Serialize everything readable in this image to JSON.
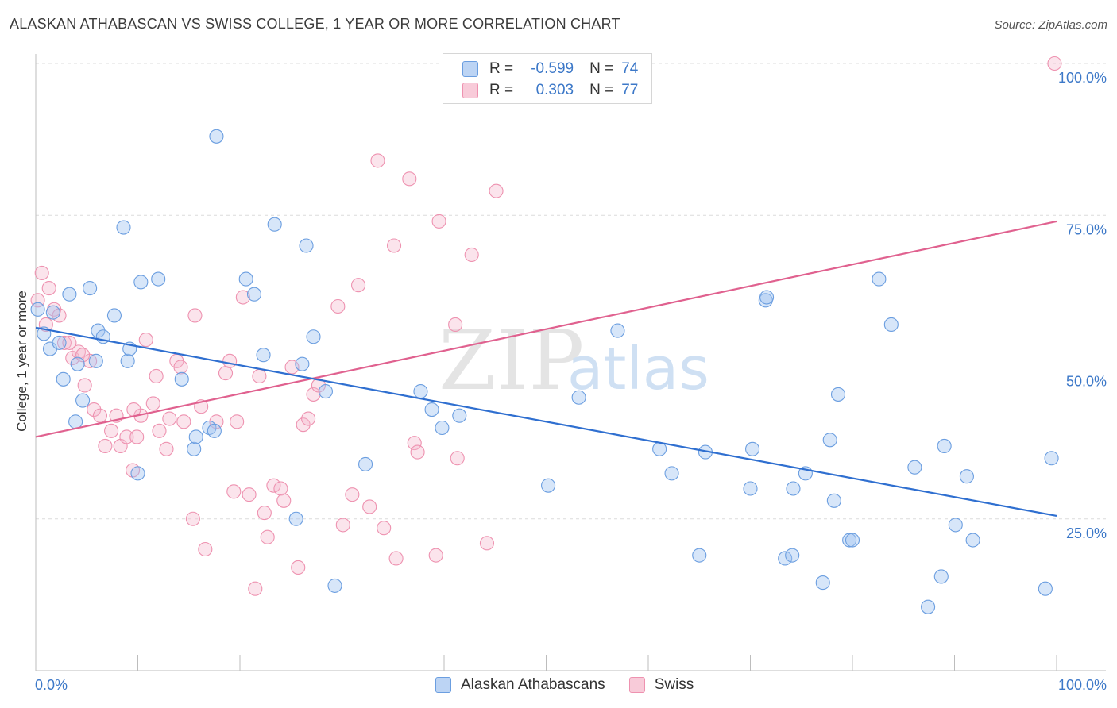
{
  "header": {
    "title": "ALASKAN ATHABASCAN VS SWISS COLLEGE, 1 YEAR OR MORE CORRELATION CHART",
    "source": "Source: ZipAtlas.com"
  },
  "legend_top": {
    "rows": [
      {
        "r_label": "R =",
        "r_value": "-0.599",
        "n_label": "N =",
        "n_value": "74"
      },
      {
        "r_label": "R =",
        "r_value": "0.303",
        "n_label": "N =",
        "n_value": "77"
      }
    ]
  },
  "watermark": {
    "zip": "ZIP",
    "atlas": "atlas"
  },
  "chart_data": {
    "type": "scatter",
    "title": "ALASKAN ATHABASCAN VS SWISS COLLEGE, 1 YEAR OR MORE CORRELATION CHART",
    "xlabel": "",
    "ylabel": "College, 1 year or more",
    "xlim": [
      0,
      100
    ],
    "ylim": [
      0,
      100
    ],
    "x_tick_labels": [
      "0.0%",
      "100.0%"
    ],
    "y_ticks": [
      25,
      50,
      75,
      100
    ],
    "y_tick_labels": [
      "25.0%",
      "50.0%",
      "75.0%",
      "100.0%"
    ],
    "grid": true,
    "legend_position": "bottom-center",
    "colors": {
      "Alaskan Athabascans": "#5b8fd8",
      "Swiss": "#ee8fae",
      "blue_line": "#2f6fd0",
      "pink_line": "#e0618f"
    },
    "series": [
      {
        "name": "Alaskan Athabascans",
        "r": -0.599,
        "n": 74,
        "trend": {
          "x": [
            0,
            100
          ],
          "y": [
            56.5,
            25.5
          ]
        },
        "points": [
          [
            0.2,
            59.5
          ],
          [
            0.8,
            55.5
          ],
          [
            1.4,
            53
          ],
          [
            1.7,
            59
          ],
          [
            2.3,
            54
          ],
          [
            2.7,
            48
          ],
          [
            3.3,
            62
          ],
          [
            3.9,
            41
          ],
          [
            4.1,
            50.5
          ],
          [
            4.6,
            44.5
          ],
          [
            5.3,
            63
          ],
          [
            5.9,
            51
          ],
          [
            6.1,
            56
          ],
          [
            6.6,
            55
          ],
          [
            7.7,
            58.5
          ],
          [
            8.6,
            73
          ],
          [
            9.0,
            51
          ],
          [
            9.2,
            53
          ],
          [
            10.0,
            32.5
          ],
          [
            10.3,
            64
          ],
          [
            12.0,
            64.5
          ],
          [
            14.3,
            48
          ],
          [
            15.5,
            36.5
          ],
          [
            15.7,
            38.5
          ],
          [
            17.0,
            40
          ],
          [
            17.5,
            39.5
          ],
          [
            17.7,
            88
          ],
          [
            20.6,
            64.5
          ],
          [
            21.4,
            62
          ],
          [
            22.3,
            52
          ],
          [
            23.4,
            73.5
          ],
          [
            25.5,
            25
          ],
          [
            26.1,
            50.5
          ],
          [
            26.5,
            70
          ],
          [
            27.2,
            55
          ],
          [
            28.4,
            46
          ],
          [
            29.3,
            14
          ],
          [
            32.3,
            34
          ],
          [
            37.7,
            46
          ],
          [
            38.8,
            43
          ],
          [
            39.8,
            40
          ],
          [
            41.5,
            42
          ],
          [
            50.2,
            30.5
          ],
          [
            53.2,
            45
          ],
          [
            57.0,
            56
          ],
          [
            61.1,
            36.5
          ],
          [
            62.3,
            32.5
          ],
          [
            65.0,
            19
          ],
          [
            65.6,
            36
          ],
          [
            70.0,
            30
          ],
          [
            70.2,
            36.5
          ],
          [
            71.5,
            61
          ],
          [
            71.6,
            61.5
          ],
          [
            73.4,
            18.5
          ],
          [
            74.1,
            19
          ],
          [
            74.2,
            30
          ],
          [
            75.4,
            32.5
          ],
          [
            77.1,
            14.5
          ],
          [
            77.8,
            38
          ],
          [
            78.2,
            28
          ],
          [
            78.6,
            45.5
          ],
          [
            79.7,
            21.5
          ],
          [
            80.0,
            21.5
          ],
          [
            82.6,
            64.5
          ],
          [
            83.8,
            57
          ],
          [
            86.1,
            33.5
          ],
          [
            87.4,
            10.5
          ],
          [
            88.7,
            15.5
          ],
          [
            89.0,
            37
          ],
          [
            90.1,
            24
          ],
          [
            91.2,
            32
          ],
          [
            91.8,
            21.5
          ],
          [
            98.9,
            13.5
          ],
          [
            99.5,
            35
          ]
        ]
      },
      {
        "name": "Swiss",
        "r": 0.303,
        "n": 77,
        "trend": {
          "x": [
            0,
            100
          ],
          "y": [
            38.5,
            74
          ]
        },
        "points": [
          [
            0.2,
            61
          ],
          [
            0.6,
            65.5
          ],
          [
            1.3,
            63
          ],
          [
            1.8,
            59.5
          ],
          [
            2.3,
            58.5
          ],
          [
            2.8,
            54
          ],
          [
            3.3,
            54
          ],
          [
            3.6,
            51.5
          ],
          [
            4.2,
            52.5
          ],
          [
            4.8,
            47
          ],
          [
            5.3,
            51
          ],
          [
            5.7,
            43
          ],
          [
            6.3,
            42
          ],
          [
            6.8,
            37
          ],
          [
            7.4,
            39.5
          ],
          [
            7.9,
            42
          ],
          [
            8.3,
            37
          ],
          [
            8.9,
            38.5
          ],
          [
            9.5,
            33
          ],
          [
            9.9,
            38.5
          ],
          [
            10.3,
            42
          ],
          [
            10.8,
            54.5
          ],
          [
            11.5,
            44
          ],
          [
            11.8,
            48.5
          ],
          [
            12.1,
            39.5
          ],
          [
            12.8,
            36.5
          ],
          [
            13.1,
            41.5
          ],
          [
            13.8,
            51
          ],
          [
            14.2,
            50
          ],
          [
            14.5,
            41
          ],
          [
            15.4,
            25
          ],
          [
            15.6,
            58.5
          ],
          [
            16.2,
            43.5
          ],
          [
            16.6,
            20
          ],
          [
            17.7,
            41
          ],
          [
            18.6,
            49
          ],
          [
            19.0,
            51
          ],
          [
            19.4,
            29.5
          ],
          [
            19.7,
            41
          ],
          [
            20.3,
            61.5
          ],
          [
            20.9,
            29
          ],
          [
            21.9,
            48.5
          ],
          [
            22.4,
            26
          ],
          [
            22.7,
            22
          ],
          [
            23.3,
            30.5
          ],
          [
            24.0,
            30
          ],
          [
            24.3,
            28
          ],
          [
            25.1,
            50
          ],
          [
            25.7,
            17
          ],
          [
            26.2,
            40.5
          ],
          [
            26.7,
            41.5
          ],
          [
            27.2,
            45.5
          ],
          [
            27.7,
            47
          ],
          [
            29.6,
            60
          ],
          [
            30.1,
            24
          ],
          [
            31.0,
            29
          ],
          [
            31.6,
            63.5
          ],
          [
            32.7,
            27
          ],
          [
            33.5,
            84
          ],
          [
            34.1,
            23.5
          ],
          [
            35.1,
            70
          ],
          [
            35.3,
            18.5
          ],
          [
            36.6,
            81
          ],
          [
            37.1,
            37.5
          ],
          [
            37.4,
            36
          ],
          [
            39.2,
            19
          ],
          [
            39.5,
            74
          ],
          [
            41.1,
            57
          ],
          [
            41.3,
            35
          ],
          [
            42.7,
            68.5
          ],
          [
            44.2,
            21
          ],
          [
            45.1,
            79
          ],
          [
            99.8,
            100
          ],
          [
            21.5,
            13.5
          ],
          [
            4.6,
            52
          ],
          [
            9.6,
            43
          ],
          [
            1.0,
            57
          ]
        ]
      }
    ]
  },
  "bottom_legend": {
    "items": [
      {
        "label": "Alaskan Athabascans"
      },
      {
        "label": "Swiss"
      }
    ]
  }
}
